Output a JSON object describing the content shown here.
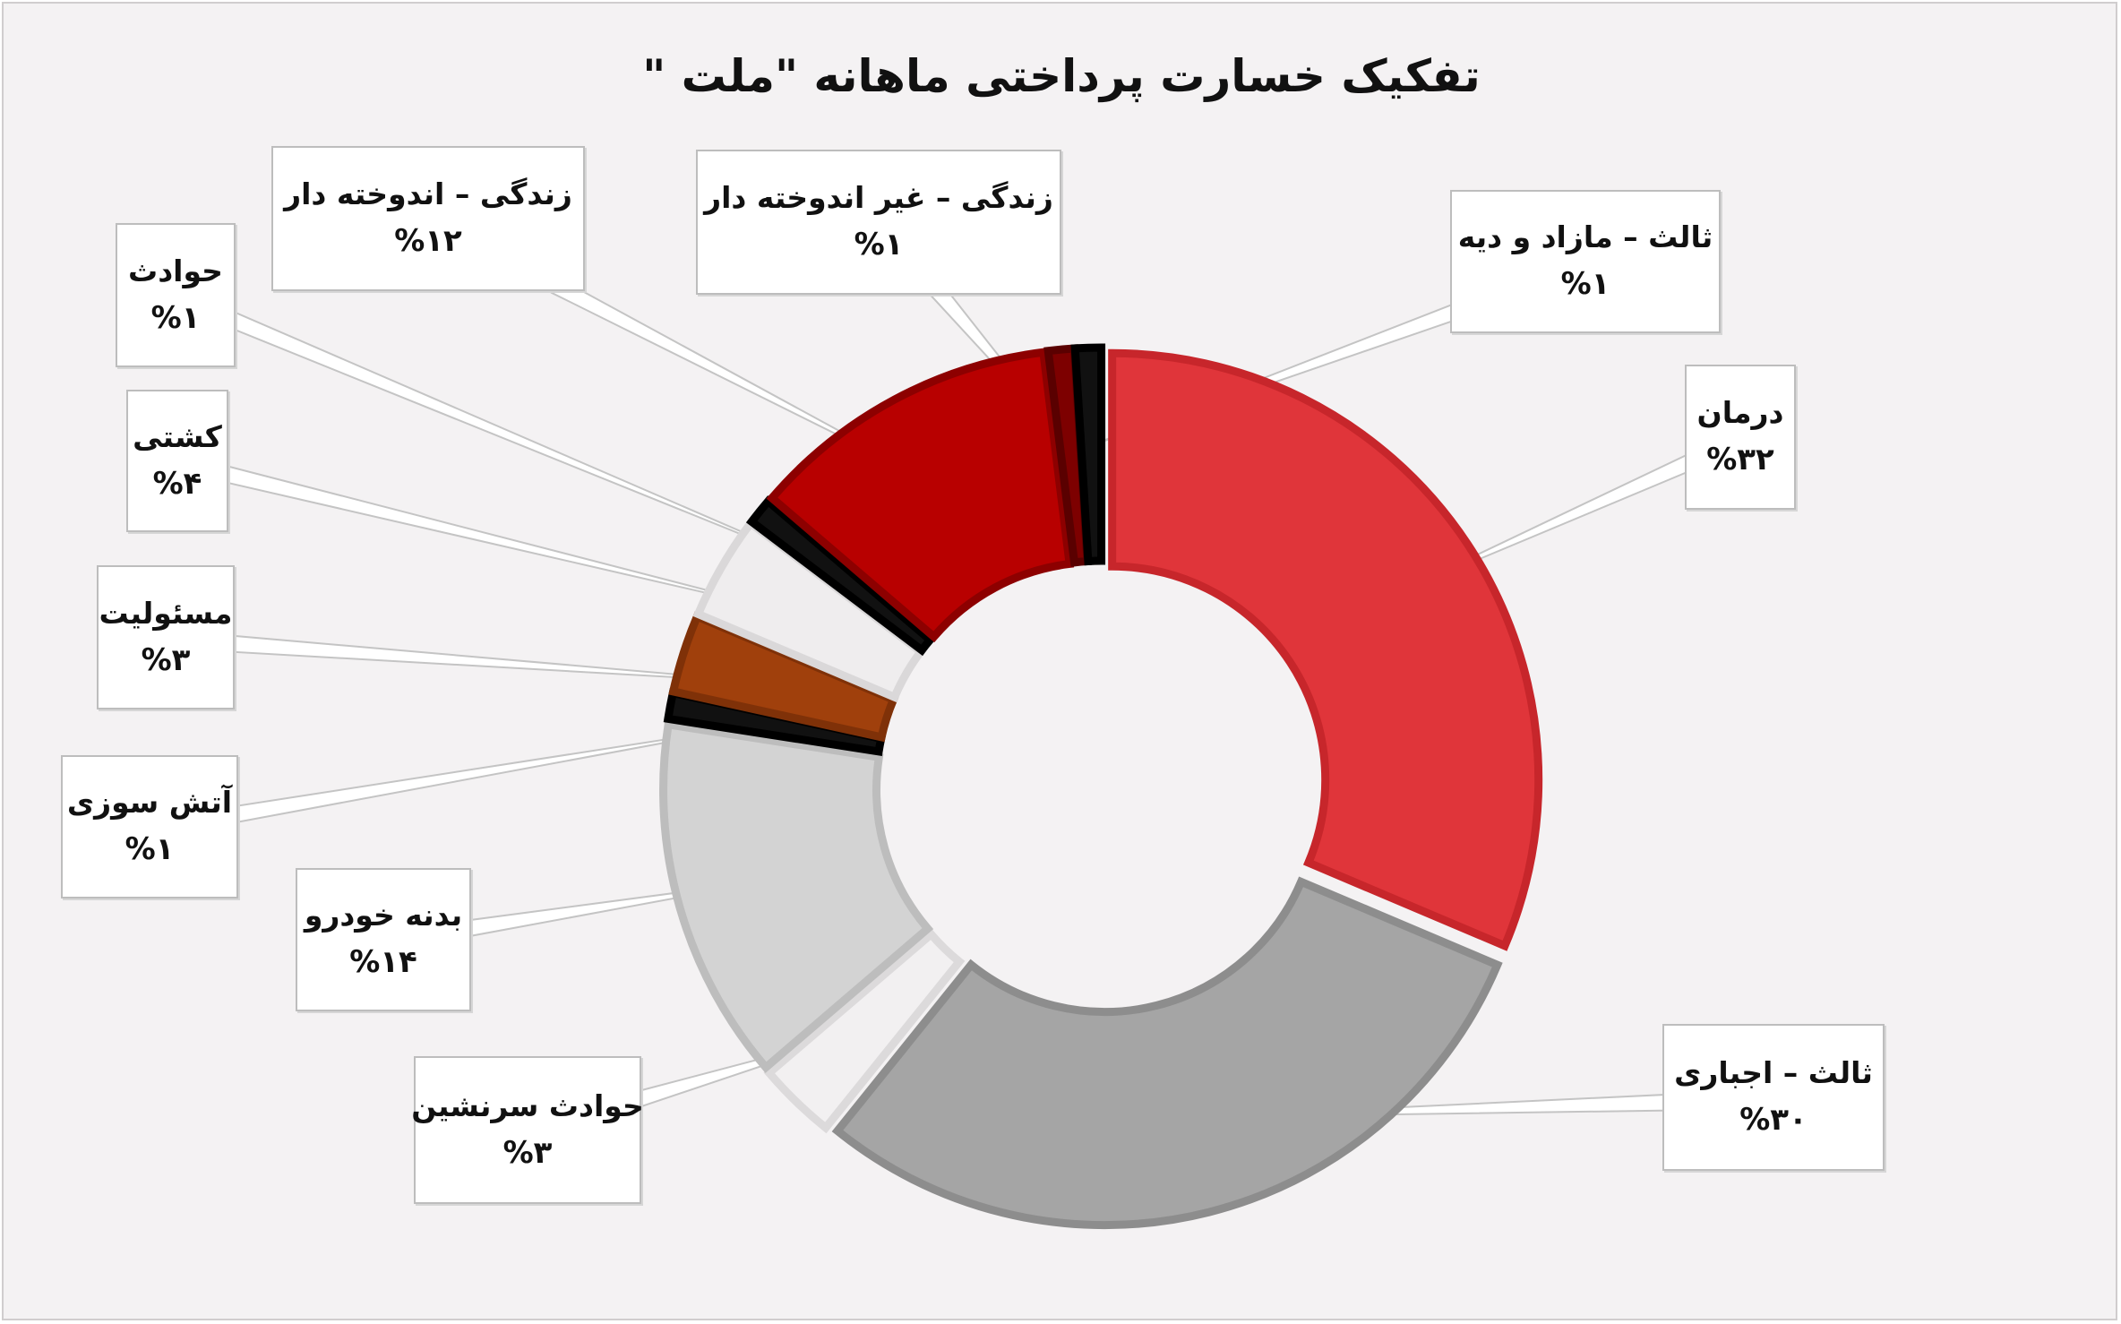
{
  "colors": {
    "background": "#f4f2f3",
    "leader_line": "#c4c4c4"
  },
  "chart_data": {
    "type": "pie",
    "variant": "donut",
    "title": "تفکیک خسارت پرداختی ماهانه \"ملت \"",
    "start": "top",
    "direction": "clockwise",
    "legend": "none",
    "slices": [
      {
        "label": "درمان",
        "value": 32,
        "display": "%۳۲",
        "color": "#e0353a",
        "edge": "#c7262b"
      },
      {
        "label": "ثالث – اجباری",
        "value": 30,
        "display": "%۳۰",
        "color": "#a5a5a5",
        "edge": "#8d8d8d"
      },
      {
        "label": "حوادث سرنشین",
        "value": 3,
        "display": "%۳",
        "color": "#f2f0f1",
        "edge": "#dcdadb"
      },
      {
        "label": "بدنه خودرو",
        "value": 14,
        "display": "%۱۴",
        "color": "#d3d3d3",
        "edge": "#bdbdbd"
      },
      {
        "label": "آتش سوزی",
        "value": 1,
        "display": "%۱",
        "color": "#111111",
        "edge": "#000000"
      },
      {
        "label": "مسئولیت",
        "value": 3,
        "display": "%۳",
        "color": "#a0400c",
        "edge": "#7f3108"
      },
      {
        "label": "کشتی",
        "value": 4,
        "display": "%۴",
        "color": "#efedee",
        "edge": "#dad8d9"
      },
      {
        "label": "حوادث",
        "value": 1,
        "display": "%۱",
        "color": "#111111",
        "edge": "#000000"
      },
      {
        "label": "زندگی – اندوخته دار",
        "value": 12,
        "display": "%۱۲",
        "color": "#b80000",
        "edge": "#8d0000"
      },
      {
        "label": "زندگی – غیر اندوخته دار",
        "value": 1,
        "display": "%۱",
        "color": "#7d0000",
        "edge": "#5a0000"
      },
      {
        "label": "ثالث – مازاد و دیه",
        "value": 1,
        "display": "%۱",
        "color": "#111111",
        "edge": "#000000"
      }
    ]
  }
}
